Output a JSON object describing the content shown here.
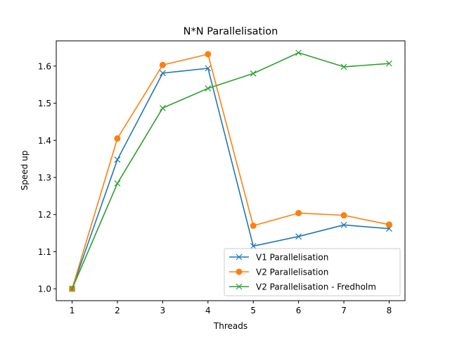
{
  "chart_data": {
    "type": "line",
    "title": "N*N Parallelisation",
    "xlabel": "Threads",
    "ylabel": "Speed up",
    "x": [
      1,
      2,
      3,
      4,
      5,
      6,
      7,
      8
    ],
    "xlim": [
      0.65,
      8.35
    ],
    "ylim": [
      0.968,
      1.668
    ],
    "xticks": [
      "1",
      "2",
      "3",
      "4",
      "5",
      "6",
      "7",
      "8"
    ],
    "yticks": [
      "1.0",
      "1.1",
      "1.2",
      "1.3",
      "1.4",
      "1.5",
      "1.6"
    ],
    "grid": false,
    "legend_position": "lower-right",
    "series": [
      {
        "name": "V1 Parallelisation",
        "color": "#1f77b4",
        "marker": "x",
        "values": [
          1.0,
          1.348,
          1.581,
          1.594,
          1.115,
          1.141,
          1.172,
          1.162
        ]
      },
      {
        "name": "V2 Parallelisation",
        "color": "#ff7f0e",
        "marker": "o",
        "values": [
          1.0,
          1.405,
          1.603,
          1.632,
          1.17,
          1.204,
          1.198,
          1.173
        ]
      },
      {
        "name": "V2 Parallelisation - Fredholm",
        "color": "#2ca02c",
        "marker": "x",
        "values": [
          1.0,
          1.284,
          1.487,
          1.54,
          1.58,
          1.636,
          1.598,
          1.607
        ]
      }
    ]
  }
}
